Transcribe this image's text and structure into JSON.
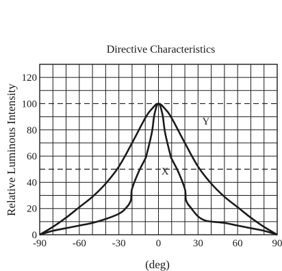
{
  "chart_data": {
    "type": "line",
    "title": "Directive Characteristics",
    "xlabel": "(deg)",
    "ylabel": "Relative Luminous Intensity",
    "xlim": [
      -90,
      90
    ],
    "ylim": [
      0,
      130
    ],
    "x_ticks": [
      -90,
      -60,
      -30,
      0,
      30,
      60,
      90
    ],
    "y_ticks": [
      0,
      20,
      40,
      60,
      80,
      100,
      120
    ],
    "grid": true,
    "grid_step_x": 10,
    "grid_step_y": 10,
    "reference_lines": [
      {
        "y": 100,
        "style": "dashed"
      },
      {
        "y": 50,
        "style": "dashed"
      }
    ],
    "series": [
      {
        "name": "X",
        "label_position": {
          "x": 5,
          "y": 46
        },
        "x": [
          -90,
          -80,
          -70,
          -60,
          -50,
          -40,
          -30,
          -25,
          -21,
          -20,
          -15,
          -10,
          -9,
          -5,
          -3,
          0,
          3,
          5,
          9,
          10,
          15,
          20,
          21,
          25,
          30,
          35,
          40,
          50,
          60,
          70,
          80,
          90
        ],
        "y": [
          0,
          3,
          5,
          7,
          9,
          12,
          16,
          20,
          26,
          35,
          48,
          58,
          61,
          78,
          92,
          100,
          92,
          78,
          61,
          58,
          48,
          35,
          26,
          20,
          14,
          11,
          10,
          9,
          7,
          5,
          3,
          0
        ]
      },
      {
        "name": "Y",
        "label_position": {
          "x": 36,
          "y": 84
        },
        "x": [
          -90,
          -80,
          -70,
          -60,
          -50,
          -40,
          -30,
          -20,
          -10,
          -5,
          0,
          5,
          10,
          20,
          30,
          40,
          50,
          60,
          70,
          80,
          90
        ],
        "y": [
          0,
          6,
          13,
          21,
          29,
          39,
          52,
          70,
          89,
          96,
          100,
          96,
          89,
          70,
          52,
          39,
          29,
          21,
          13,
          6,
          0
        ]
      }
    ]
  }
}
